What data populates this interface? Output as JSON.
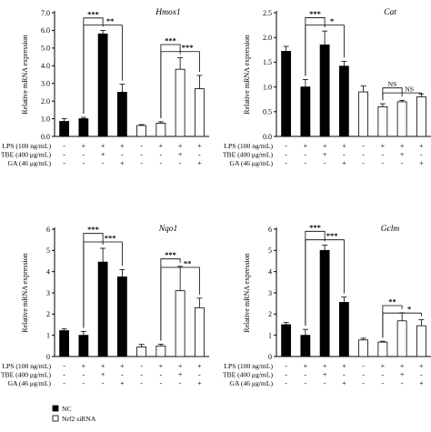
{
  "figure": {
    "y_axis_label": "Relative mRNA expression",
    "row_labels": [
      "LPS (100 ng/mL)",
      "TBE (400 μg/mL)",
      "GA (46 μg/mL)"
    ],
    "conditions": {
      "LPS": [
        "-",
        "+",
        "+",
        "+",
        "-",
        "+",
        "+",
        "+"
      ],
      "TBE": [
        "-",
        "-",
        "+",
        "-",
        "-",
        "-",
        "+",
        "-"
      ],
      "GA": [
        "-",
        "-",
        "-",
        "+",
        "-",
        "-",
        "-",
        "+"
      ]
    },
    "legend": [
      {
        "label": "NC",
        "fill": "#000000"
      },
      {
        "label": "Nrf2 siRNA",
        "fill": "#ffffff"
      }
    ],
    "colors": {
      "nc": "#000000",
      "sirna": "#ffffff",
      "stroke": "#000000"
    }
  },
  "chart_data": [
    {
      "type": "bar",
      "title": "Hmox1",
      "ylabel": "Relative mRNA expression",
      "ylim": [
        0,
        7
      ],
      "yticks": [
        0,
        1,
        2,
        3,
        4,
        5,
        6,
        7
      ],
      "ytick_labels": [
        "0.0",
        "1.0",
        "2.0",
        "3.0",
        "4.0",
        "5.0",
        "6.0",
        "7.0"
      ],
      "series": [
        {
          "name": "NC",
          "values": [
            0.85,
            1.0,
            5.8,
            2.5
          ],
          "errors": [
            0.15,
            0.08,
            0.2,
            0.45
          ]
        },
        {
          "name": "Nrf2 siRNA",
          "values": [
            0.62,
            0.75,
            3.8,
            2.7
          ],
          "errors": [
            0.05,
            0.08,
            0.65,
            0.75
          ]
        }
      ],
      "significance": [
        {
          "group": 0,
          "bars": [
            1,
            2
          ],
          "level": 6.7,
          "label": "***"
        },
        {
          "group": 0,
          "bars": [
            1,
            3
          ],
          "level": 6.3,
          "label": "**"
        },
        {
          "group": 1,
          "bars": [
            1,
            2
          ],
          "level": 5.2,
          "label": "***"
        },
        {
          "group": 1,
          "bars": [
            1,
            3
          ],
          "level": 4.8,
          "label": "***"
        }
      ]
    },
    {
      "type": "bar",
      "title": "Cat",
      "ylabel": "Relative mRNA expression",
      "ylim": [
        0,
        2.5
      ],
      "yticks": [
        0,
        0.5,
        1,
        1.5,
        2,
        2.5
      ],
      "ytick_labels": [
        "0.0",
        "0.5",
        "1.0",
        "1.5",
        "2.0",
        "2.5"
      ],
      "series": [
        {
          "name": "NC",
          "values": [
            1.72,
            1.0,
            1.85,
            1.42
          ],
          "errors": [
            0.1,
            0.15,
            0.28,
            0.1
          ]
        },
        {
          "name": "Nrf2 siRNA",
          "values": [
            0.9,
            0.6,
            0.7,
            0.8
          ],
          "errors": [
            0.12,
            0.06,
            0.03,
            0.06
          ]
        }
      ],
      "significance": [
        {
          "group": 0,
          "bars": [
            1,
            2
          ],
          "level": 2.4,
          "label": "***"
        },
        {
          "group": 0,
          "bars": [
            1,
            3
          ],
          "level": 2.25,
          "label": "*"
        },
        {
          "group": 1,
          "bars": [
            1,
            2
          ],
          "level": 0.98,
          "label": "NS"
        },
        {
          "group": 1,
          "bars": [
            1,
            3
          ],
          "level": 0.88,
          "label": "NS"
        }
      ]
    },
    {
      "type": "bar",
      "title": "Nqo1",
      "ylabel": "Relative mRNA expression",
      "ylim": [
        0,
        6
      ],
      "yticks": [
        0,
        1,
        2,
        3,
        4,
        5,
        6
      ],
      "ytick_labels": [
        "0",
        "1",
        "2",
        "3",
        "4",
        "5",
        "6"
      ],
      "series": [
        {
          "name": "NC",
          "values": [
            1.22,
            1.0,
            4.45,
            3.75
          ],
          "errors": [
            0.08,
            0.18,
            0.65,
            0.35
          ]
        },
        {
          "name": "Nrf2 siRNA",
          "values": [
            0.45,
            0.5,
            3.1,
            2.3
          ],
          "errors": [
            0.12,
            0.08,
            1.15,
            0.45
          ]
        }
      ],
      "significance": [
        {
          "group": 0,
          "bars": [
            1,
            2
          ],
          "level": 5.8,
          "label": "***"
        },
        {
          "group": 0,
          "bars": [
            1,
            3
          ],
          "level": 5.4,
          "label": "***"
        },
        {
          "group": 1,
          "bars": [
            1,
            2
          ],
          "level": 4.6,
          "label": "***"
        },
        {
          "group": 1,
          "bars": [
            1,
            3
          ],
          "level": 4.2,
          "label": "**"
        }
      ]
    },
    {
      "type": "bar",
      "title": "Gclm",
      "ylabel": "Relative mRNA expression",
      "ylim": [
        0,
        6
      ],
      "yticks": [
        0,
        1,
        2,
        3,
        4,
        5,
        6
      ],
      "ytick_labels": [
        "0",
        "1",
        "2",
        "3",
        "4",
        "5",
        "6"
      ],
      "series": [
        {
          "name": "NC",
          "values": [
            1.5,
            1.0,
            5.0,
            2.55
          ],
          "errors": [
            0.1,
            0.28,
            0.25,
            0.25
          ]
        },
        {
          "name": "Nrf2 siRNA",
          "values": [
            0.78,
            0.68,
            1.68,
            1.45
          ],
          "errors": [
            0.08,
            0.04,
            0.38,
            0.28
          ]
        }
      ],
      "significance": [
        {
          "group": 0,
          "bars": [
            1,
            2
          ],
          "level": 5.9,
          "label": "***"
        },
        {
          "group": 0,
          "bars": [
            1,
            3
          ],
          "level": 5.5,
          "label": "***"
        },
        {
          "group": 1,
          "bars": [
            1,
            2
          ],
          "level": 2.4,
          "label": "**"
        },
        {
          "group": 1,
          "bars": [
            1,
            3
          ],
          "level": 2.05,
          "label": "*"
        }
      ]
    }
  ]
}
